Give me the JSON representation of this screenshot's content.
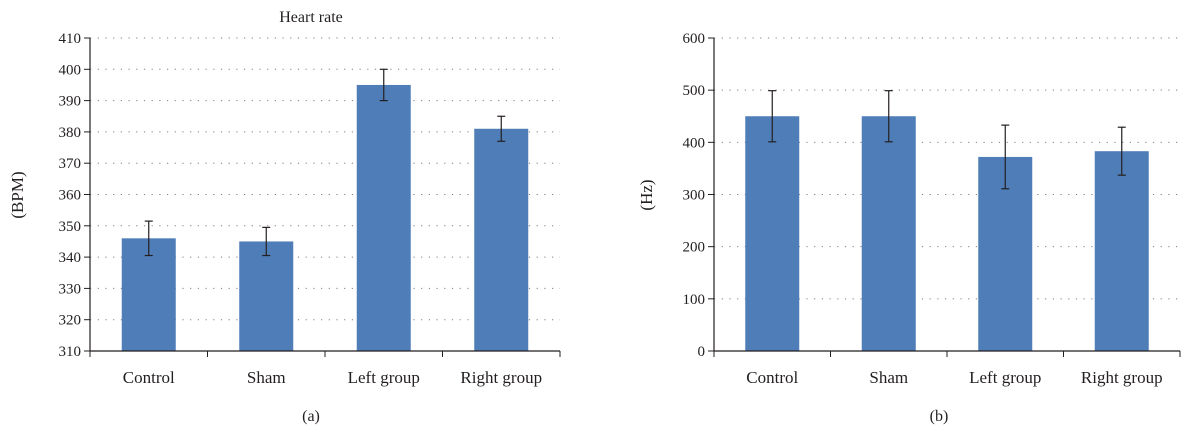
{
  "chart_data": [
    {
      "type": "bar",
      "panel_label": "(a)",
      "title": "Heart rate",
      "xlabel": "",
      "ylabel": "(BPM)",
      "categories": [
        "Control",
        "Sham",
        "Left group",
        "Right group"
      ],
      "values": [
        346,
        345,
        395,
        381
      ],
      "errors": [
        5.5,
        4.5,
        5,
        4
      ],
      "ylim": [
        310,
        410
      ],
      "yticks": [
        310,
        320,
        330,
        340,
        350,
        360,
        370,
        380,
        390,
        400,
        410
      ],
      "grid": true,
      "bar_color": "#4f7db7"
    },
    {
      "type": "bar",
      "panel_label": "(b)",
      "title": "",
      "xlabel": "",
      "ylabel": "(Hz)",
      "categories": [
        "Control",
        "Sham",
        "Left group",
        "Right group"
      ],
      "values": [
        450,
        450,
        372,
        383
      ],
      "errors": [
        49,
        49,
        61,
        46
      ],
      "ylim": [
        0,
        600
      ],
      "yticks": [
        0,
        100,
        200,
        300,
        400,
        500,
        600
      ],
      "grid": true,
      "bar_color": "#4f7db7"
    }
  ]
}
